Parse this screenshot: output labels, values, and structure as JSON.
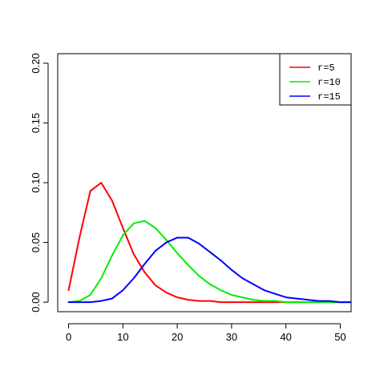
{
  "chart_data": {
    "type": "line",
    "title": "",
    "xlabel": "",
    "ylabel": "",
    "xlim": [
      -2,
      52
    ],
    "ylim": [
      -0.008,
      0.208
    ],
    "x_ticks": [
      0,
      10,
      20,
      30,
      40,
      50
    ],
    "y_ticks": [
      0.0,
      0.05,
      0.1,
      0.15,
      0.2
    ],
    "x_tick_labels": [
      "0",
      "10",
      "20",
      "30",
      "40",
      "50"
    ],
    "y_tick_labels": [
      "0.00",
      "0.05",
      "0.10",
      "0.15",
      "0.20"
    ],
    "grid": false,
    "legend_position": "top-right",
    "x": [
      0,
      2,
      4,
      6,
      8,
      10,
      12,
      14,
      16,
      18,
      20,
      22,
      24,
      26,
      28,
      30,
      32,
      34,
      36,
      38,
      40,
      42,
      44,
      46,
      48,
      50,
      52
    ],
    "series": [
      {
        "name": "r=5",
        "color": "#ff0000",
        "values": [
          0.01,
          0.054,
          0.093,
          0.1,
          0.085,
          0.062,
          0.04,
          0.025,
          0.014,
          0.008,
          0.004,
          0.002,
          0.001,
          0.001,
          0.0,
          0.0,
          0.0,
          0.0,
          0.0,
          0.0,
          0.0,
          0.0,
          0.0,
          0.0,
          0.0,
          0.0,
          0.0
        ]
      },
      {
        "name": "r=10",
        "color": "#00ee00",
        "values": [
          0.0,
          0.001,
          0.006,
          0.02,
          0.039,
          0.056,
          0.066,
          0.068,
          0.062,
          0.052,
          0.041,
          0.031,
          0.022,
          0.015,
          0.01,
          0.006,
          0.004,
          0.002,
          0.001,
          0.001,
          0.0,
          0.0,
          0.0,
          0.0,
          0.0,
          0.0,
          0.0
        ]
      },
      {
        "name": "r=15",
        "color": "#0000ff",
        "values": [
          0.0,
          0.0,
          0.0,
          0.001,
          0.003,
          0.01,
          0.02,
          0.032,
          0.043,
          0.05,
          0.054,
          0.054,
          0.049,
          0.042,
          0.035,
          0.027,
          0.02,
          0.015,
          0.01,
          0.007,
          0.004,
          0.003,
          0.002,
          0.001,
          0.001,
          0.0,
          0.0
        ]
      }
    ]
  }
}
